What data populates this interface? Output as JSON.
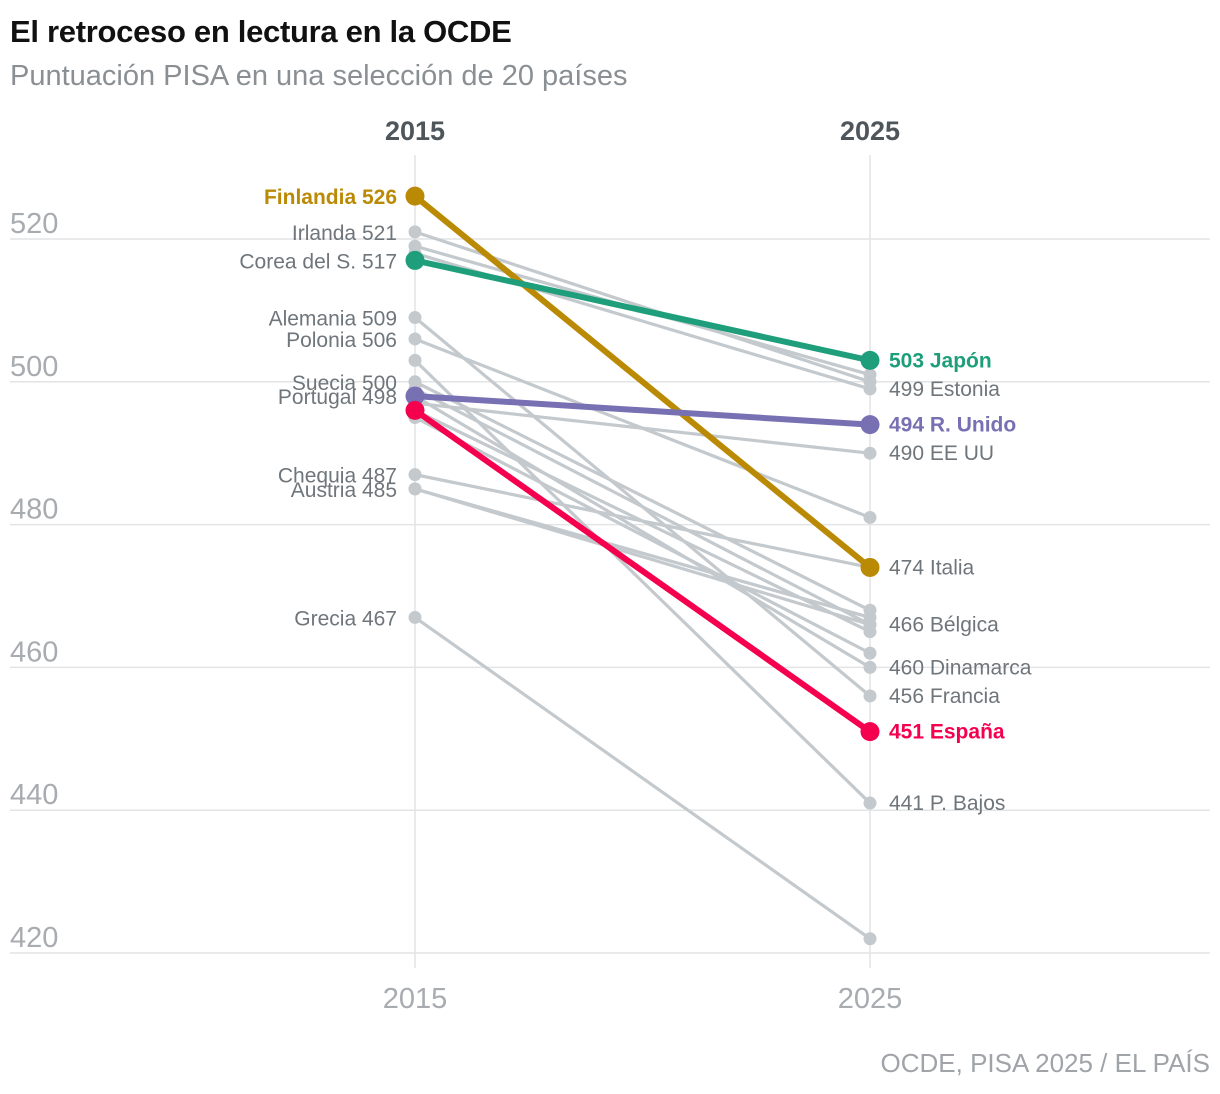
{
  "title": "El retroceso en lectura en la OCDE",
  "subtitle": "Puntuación PISA en una selección de 20 países",
  "source": "OCDE, PISA 2025 / EL PAÍS",
  "colors": {
    "other": "#c3c9cd",
    "grid": "#e2e4e6",
    "Finlandia": "#bb8a05",
    "Japón": "#1e9e7a",
    "R. Unido": "#7770b3",
    "España": "#f5004f"
  },
  "chart_data": {
    "type": "line",
    "x": [
      "2015",
      "2025"
    ],
    "column_headers": [
      "2015",
      "2025"
    ],
    "xlabels": [
      "2015",
      "2025"
    ],
    "ylim": [
      418,
      530
    ],
    "yticks": [
      420,
      440,
      460,
      480,
      500,
      520
    ],
    "grid": true,
    "series": [
      {
        "name": "Finlandia",
        "values": [
          526,
          474
        ],
        "highlight": true
      },
      {
        "name": "Corea del S.",
        "values": [
          517,
          503
        ],
        "highlight": true
      },
      {
        "name": "Portugal",
        "values": [
          498,
          494
        ],
        "highlight": true
      },
      {
        "name": "España",
        "values": [
          496,
          451
        ],
        "highlight": true
      },
      {
        "name": "Irlanda",
        "values": [
          521,
          500
        ]
      },
      {
        "name": "",
        "values": [
          519,
          501
        ]
      },
      {
        "name": "",
        "values": [
          518,
          499
        ]
      },
      {
        "name": "Alemania",
        "values": [
          509,
          456
        ]
      },
      {
        "name": "Polonia",
        "values": [
          506,
          481
        ]
      },
      {
        "name": "",
        "values": [
          503,
          441
        ]
      },
      {
        "name": "Suecia",
        "values": [
          500,
          468
        ]
      },
      {
        "name": "",
        "values": [
          499,
          466
        ]
      },
      {
        "name": "",
        "values": [
          498,
          460
        ]
      },
      {
        "name": "",
        "values": [
          497,
          490
        ]
      },
      {
        "name": "",
        "values": [
          496,
          465
        ]
      },
      {
        "name": "",
        "values": [
          495,
          462
        ]
      },
      {
        "name": "Chequia",
        "values": [
          487,
          474
        ]
      },
      {
        "name": "Austria",
        "values": [
          485,
          467
        ]
      },
      {
        "name": "",
        "values": [
          485,
          466
        ]
      },
      {
        "name": "Grecia",
        "values": [
          467,
          422
        ]
      }
    ],
    "left_labels": [
      {
        "text": "Finlandia 526",
        "value": 526,
        "color_key": "Finlandia",
        "bold": true
      },
      {
        "text": "Irlanda 521",
        "value": 521
      },
      {
        "text": "Corea del S. 517",
        "value": 517
      },
      {
        "text": "Alemania 509",
        "value": 509
      },
      {
        "text": "Polonia 506",
        "value": 506
      },
      {
        "text": "Suecia 500",
        "value": 500
      },
      {
        "text": "Portugal 498",
        "value": 498
      },
      {
        "text": "Chequia 487",
        "value": 487
      },
      {
        "text": "Austria 485",
        "value": 485
      },
      {
        "text": "Grecia 467",
        "value": 467
      }
    ],
    "right_labels": [
      {
        "text": "503 Japón",
        "value": 503,
        "color_key": "Japón",
        "bold": true
      },
      {
        "text": "499 Estonia",
        "value": 499
      },
      {
        "text": "494 R. Unido",
        "value": 494,
        "color_key": "R. Unido",
        "bold": true
      },
      {
        "text": "490 EE UU",
        "value": 490
      },
      {
        "text": "474 Italia",
        "value": 474
      },
      {
        "text": "466 Bélgica",
        "value": 466
      },
      {
        "text": "460 Dinamarca",
        "value": 460
      },
      {
        "text": "456 Francia",
        "value": 456
      },
      {
        "text": "451 España",
        "value": 451,
        "color_key": "España",
        "bold": true
      },
      {
        "text": "441 P. Bajos",
        "value": 441
      }
    ]
  }
}
